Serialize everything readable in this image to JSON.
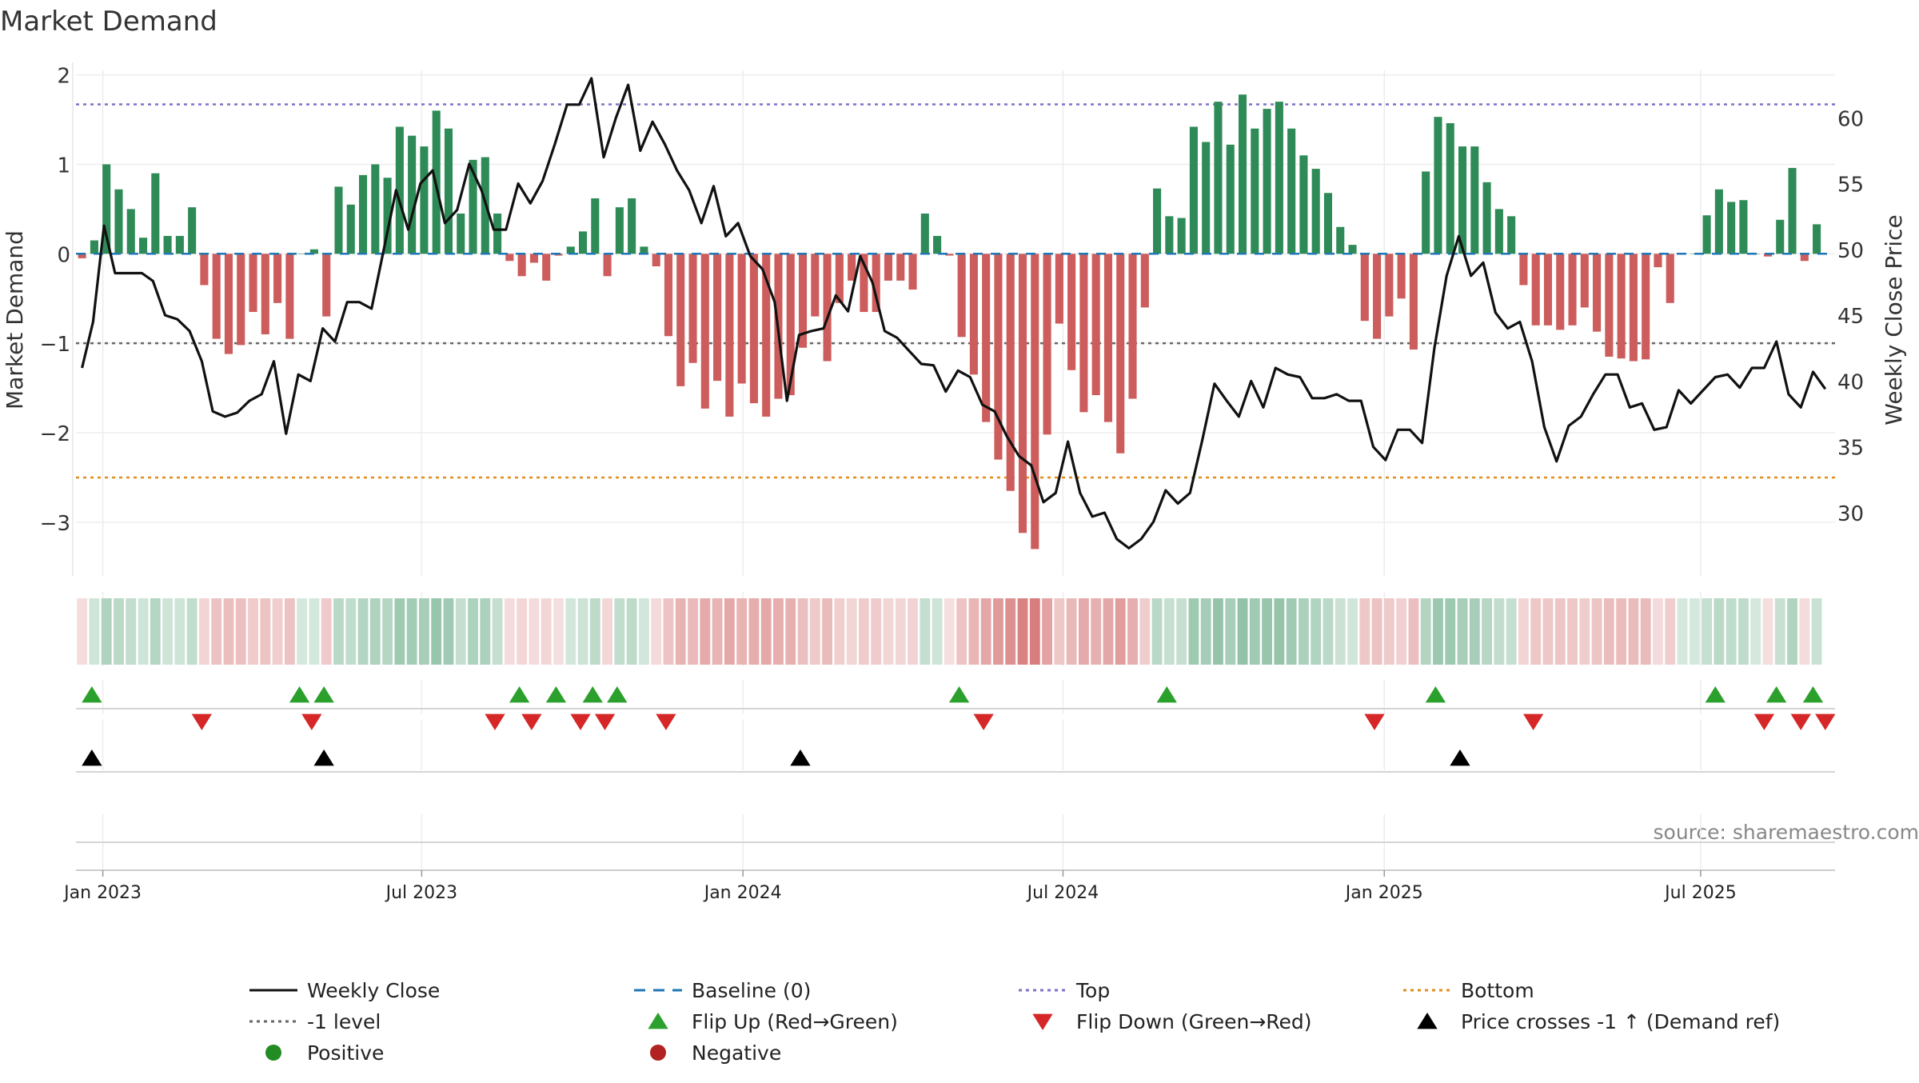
{
  "chart_data": {
    "type": "bar",
    "title": "Market Demand",
    "ylabel_left": "Market Demand",
    "ylabel_right": "Weekly Close Price",
    "ylim_left": [
      -3.6,
      2.05
    ],
    "ylim_right": [
      25.2,
      63.6
    ],
    "yticks_left": [
      2,
      1,
      0,
      -1,
      -2,
      -3
    ],
    "ytick_labels_left": [
      "2",
      "1",
      "0",
      "−1",
      "−2",
      "−3"
    ],
    "yticks_right": [
      60,
      55,
      50,
      45,
      40,
      35,
      30
    ],
    "ytick_labels_right": [
      "60",
      "55",
      "50",
      "45",
      "40",
      "35",
      "30"
    ],
    "x_domain": [
      0,
      144
    ],
    "xtick_positions": [
      2.2,
      28.3,
      54.6,
      80.8,
      107.1,
      133.0
    ],
    "xtick_labels": [
      "Jan 2023",
      "Jul 2023",
      "Jan 2024",
      "Jul 2024",
      "Jan 2025",
      "Jul 2025"
    ],
    "reference_lines": {
      "top": 1.67,
      "minus_one": -1.0,
      "bottom": -2.5,
      "baseline": 0
    },
    "demand": [
      -0.05,
      0.15,
      1.0,
      0.72,
      0.5,
      0.18,
      0.9,
      0.2,
      0.2,
      0.52,
      -0.35,
      -0.95,
      -1.12,
      -1.02,
      -0.65,
      -0.9,
      -0.55,
      -0.95,
      0.0,
      0.05,
      -0.7,
      0.75,
      0.55,
      0.88,
      1.0,
      0.85,
      1.42,
      1.32,
      1.2,
      1.6,
      1.4,
      0.45,
      1.05,
      1.08,
      0.45,
      -0.08,
      -0.25,
      -0.1,
      -0.3,
      -0.02,
      0.08,
      0.25,
      0.62,
      -0.25,
      0.52,
      0.62,
      0.08,
      -0.14,
      -0.92,
      -1.48,
      -1.22,
      -1.73,
      -1.42,
      -1.82,
      -1.45,
      -1.67,
      -1.82,
      -1.62,
      -1.58,
      -1.05,
      -0.7,
      -1.2,
      -0.55,
      -0.3,
      -0.65,
      -0.65,
      -0.3,
      -0.3,
      -0.4,
      0.45,
      0.2,
      -0.02,
      -0.93,
      -1.35,
      -1.88,
      -2.3,
      -2.65,
      -3.12,
      -3.3,
      -2.02,
      -0.78,
      -1.3,
      -1.77,
      -1.58,
      -1.88,
      -2.23,
      -1.62,
      -0.6,
      0.73,
      0.42,
      0.4,
      1.42,
      1.25,
      1.7,
      1.22,
      1.78,
      1.4,
      1.62,
      1.7,
      1.4,
      1.1,
      0.95,
      0.68,
      0.3,
      0.1,
      -0.75,
      -0.95,
      -0.7,
      -0.5,
      -1.07,
      0.92,
      1.53,
      1.46,
      1.2,
      1.2,
      0.8,
      0.5,
      0.42,
      -0.35,
      -0.8,
      -0.8,
      -0.85,
      -0.8,
      -0.6,
      -0.87,
      -1.15,
      -1.17,
      -1.2,
      -1.18,
      -0.15,
      -0.55,
      0.0,
      0.0,
      0.43,
      0.72,
      0.58,
      0.6,
      0.0,
      -0.03,
      0.38,
      0.96,
      -0.08,
      0.33
    ],
    "weekly_close": [
      [
        0.5,
        41.0
      ],
      [
        1.4,
        44.5
      ],
      [
        2.3,
        51.8
      ],
      [
        3.2,
        48.2
      ],
      [
        4.4,
        48.2
      ],
      [
        5.4,
        48.2
      ],
      [
        6.3,
        47.6
      ],
      [
        7.3,
        45.0
      ],
      [
        8.3,
        44.7
      ],
      [
        9.3,
        43.8
      ],
      [
        10.3,
        41.5
      ],
      [
        11.2,
        37.7
      ],
      [
        12.2,
        37.3
      ],
      [
        13.2,
        37.6
      ],
      [
        14.2,
        38.5
      ],
      [
        15.2,
        39.0
      ],
      [
        16.2,
        41.5
      ],
      [
        17.2,
        36.0
      ],
      [
        18.2,
        40.5
      ],
      [
        19.2,
        40.0
      ],
      [
        20.2,
        44.0
      ],
      [
        21.2,
        43.0
      ],
      [
        22.2,
        46.0
      ],
      [
        23.2,
        46.0
      ],
      [
        24.2,
        45.5
      ],
      [
        25.2,
        50.0
      ],
      [
        26.2,
        54.5
      ],
      [
        27.2,
        51.5
      ],
      [
        28.2,
        55.0
      ],
      [
        29.2,
        56.0
      ],
      [
        30.2,
        52.0
      ],
      [
        31.2,
        53.0
      ],
      [
        32.2,
        56.5
      ],
      [
        33.2,
        54.5
      ],
      [
        34.2,
        51.5
      ],
      [
        35.2,
        51.5
      ],
      [
        36.2,
        55.0
      ],
      [
        37.2,
        53.5
      ],
      [
        38.2,
        55.2
      ],
      [
        39.2,
        58.0
      ],
      [
        40.2,
        61.0
      ],
      [
        41.2,
        61.0
      ],
      [
        42.2,
        63.0
      ],
      [
        43.2,
        57.0
      ],
      [
        44.2,
        60.0
      ],
      [
        45.2,
        62.5
      ],
      [
        46.2,
        57.5
      ],
      [
        47.2,
        59.7
      ],
      [
        48.2,
        58.0
      ],
      [
        49.2,
        56.0
      ],
      [
        50.2,
        54.5
      ],
      [
        51.2,
        52.0
      ],
      [
        52.2,
        54.8
      ],
      [
        53.2,
        51.0
      ],
      [
        54.2,
        52.0
      ],
      [
        55.2,
        49.5
      ],
      [
        56.2,
        48.5
      ],
      [
        57.2,
        46.0
      ],
      [
        58.2,
        38.5
      ],
      [
        59.2,
        43.5
      ],
      [
        60.2,
        43.8
      ],
      [
        61.2,
        44.0
      ],
      [
        62.2,
        46.5
      ],
      [
        63.2,
        45.3
      ],
      [
        64.2,
        49.5
      ],
      [
        65.2,
        47.5
      ],
      [
        66.2,
        43.8
      ],
      [
        67.2,
        43.3
      ],
      [
        68.2,
        42.3
      ],
      [
        69.2,
        41.3
      ],
      [
        70.2,
        41.2
      ],
      [
        71.2,
        39.2
      ],
      [
        72.2,
        40.8
      ],
      [
        73.2,
        40.3
      ],
      [
        74.2,
        38.2
      ],
      [
        75.2,
        37.7
      ],
      [
        76.2,
        35.8
      ],
      [
        77.2,
        34.3
      ],
      [
        78.2,
        33.6
      ],
      [
        79.2,
        30.8
      ],
      [
        80.2,
        31.5
      ],
      [
        81.2,
        35.4
      ],
      [
        82.2,
        31.5
      ],
      [
        83.2,
        29.7
      ],
      [
        84.2,
        30.0
      ],
      [
        85.2,
        28.0
      ],
      [
        86.2,
        27.3
      ],
      [
        87.2,
        28.0
      ],
      [
        88.2,
        29.3
      ],
      [
        89.2,
        31.7
      ],
      [
        90.2,
        30.7
      ],
      [
        91.2,
        31.5
      ],
      [
        92.2,
        35.5
      ],
      [
        93.2,
        39.8
      ],
      [
        94.2,
        38.5
      ],
      [
        95.2,
        37.3
      ],
      [
        96.2,
        40.0
      ],
      [
        97.2,
        38.0
      ],
      [
        98.2,
        41.0
      ],
      [
        99.2,
        40.5
      ],
      [
        100.2,
        40.3
      ],
      [
        101.2,
        38.7
      ],
      [
        102.2,
        38.7
      ],
      [
        103.2,
        39.0
      ],
      [
        104.2,
        38.5
      ],
      [
        105.2,
        38.5
      ],
      [
        106.2,
        35.0
      ],
      [
        107.2,
        34.0
      ],
      [
        108.2,
        36.3
      ],
      [
        109.2,
        36.3
      ],
      [
        110.2,
        35.3
      ],
      [
        111.2,
        42.5
      ],
      [
        112.2,
        48.0
      ],
      [
        113.2,
        51.0
      ],
      [
        114.2,
        48.0
      ],
      [
        115.2,
        49.0
      ],
      [
        116.2,
        45.2
      ],
      [
        117.2,
        44.0
      ],
      [
        118.2,
        44.5
      ],
      [
        119.2,
        41.5
      ],
      [
        120.2,
        36.5
      ],
      [
        121.2,
        33.9
      ],
      [
        122.2,
        36.6
      ],
      [
        123.2,
        37.3
      ],
      [
        124.2,
        39.0
      ],
      [
        125.2,
        40.5
      ],
      [
        126.2,
        40.5
      ],
      [
        127.2,
        38.0
      ],
      [
        128.2,
        38.3
      ],
      [
        129.2,
        36.3
      ],
      [
        130.2,
        36.5
      ],
      [
        131.2,
        39.3
      ],
      [
        132.2,
        38.3
      ],
      [
        133.2,
        39.3
      ],
      [
        134.2,
        40.3
      ],
      [
        135.2,
        40.5
      ],
      [
        136.2,
        39.5
      ],
      [
        137.2,
        41.0
      ],
      [
        138.2,
        41.0
      ],
      [
        139.2,
        43.0
      ],
      [
        140.2,
        39.0
      ],
      [
        141.2,
        38.0
      ],
      [
        142.2,
        40.7
      ],
      [
        143.2,
        39.4
      ]
    ],
    "flip_up": [
      1.3,
      18.3,
      20.3,
      36.3,
      39.3,
      42.3,
      44.3,
      72.3,
      89.3,
      111.3,
      134.2,
      139.2,
      142.2
    ],
    "flip_down": [
      10.3,
      19.3,
      34.3,
      37.3,
      41.3,
      43.3,
      48.3,
      74.3,
      106.3,
      119.3,
      138.2,
      141.2,
      143.2
    ],
    "price_cross_up": [
      1.3,
      20.3,
      59.3,
      113.3
    ],
    "annotation": "source: sharemaestro.com",
    "legend": [
      {
        "label": "Weekly Close",
        "kind": "line",
        "color": "#111111"
      },
      {
        "label": "Baseline (0)",
        "kind": "dash",
        "color": "#1f77b4"
      },
      {
        "label": "Top",
        "kind": "dot",
        "color": "#7b72c8"
      },
      {
        "label": "Bottom",
        "kind": "dot",
        "color": "#e08e1c"
      },
      {
        "label": "-1 level",
        "kind": "dot",
        "color": "#666666"
      },
      {
        "label": "Flip Up (Red→Green)",
        "kind": "tri-up",
        "color": "#2ca02c"
      },
      {
        "label": "Flip Down (Green→Red)",
        "kind": "tri-down",
        "color": "#d62728"
      },
      {
        "label": "Price crosses -1 ↑ (Demand ref)",
        "kind": "tri-up",
        "color": "#000000"
      },
      {
        "label": "Positive",
        "kind": "circle",
        "color": "#228b22"
      },
      {
        "label": "Negative",
        "kind": "circle",
        "color": "#b22222"
      }
    ],
    "colors": {
      "positive": "#2e8b57",
      "negative": "#cd5c5c",
      "price": "#111111",
      "baseline": "#1f77b4"
    }
  }
}
